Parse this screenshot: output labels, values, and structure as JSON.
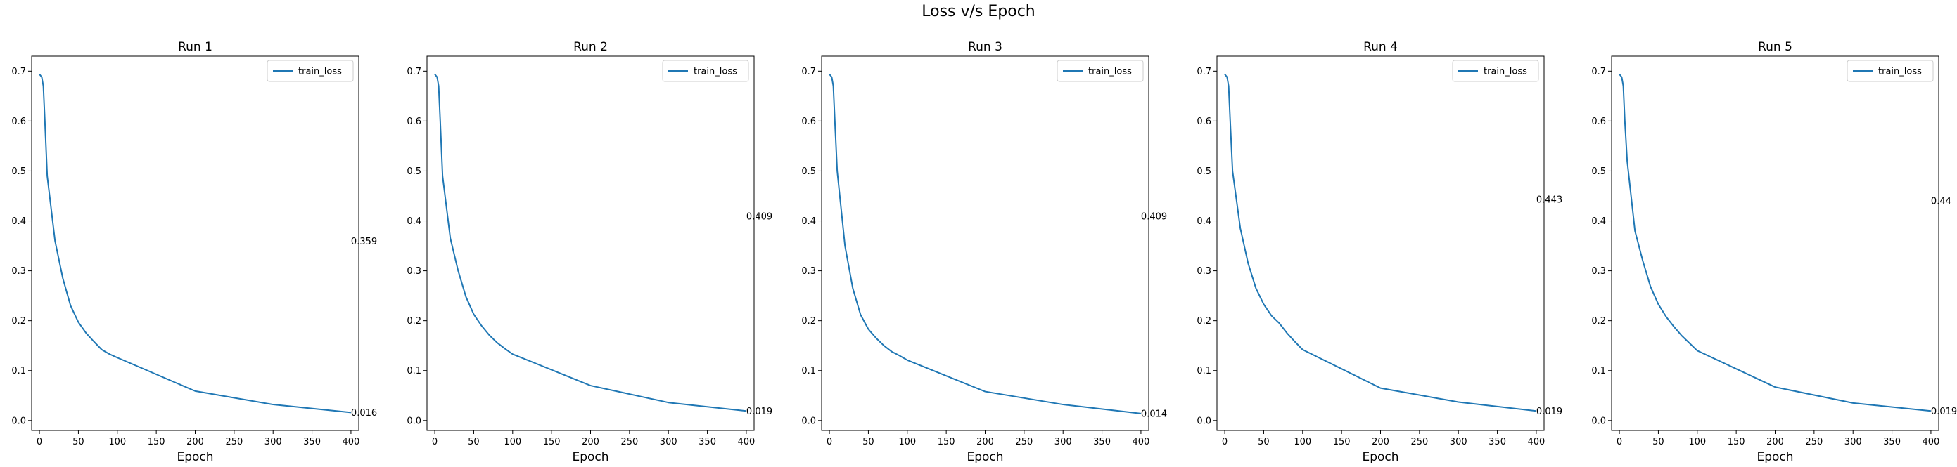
{
  "figure": {
    "suptitle": "Loss v/s Epoch"
  },
  "style": {
    "line_color": "#1f77b4"
  },
  "chart_data": [
    {
      "type": "line",
      "title": "Run 1",
      "xlabel": "Epoch",
      "ylabel": "",
      "legend": [
        "train_loss"
      ],
      "legend_loc": "upper right",
      "xlim": [
        -10,
        410
      ],
      "ylim": [
        -0.02,
        0.73
      ],
      "xticks": [
        0,
        50,
        100,
        150,
        200,
        250,
        300,
        350,
        400
      ],
      "yticks": [
        0.0,
        0.1,
        0.2,
        0.3,
        0.4,
        0.5,
        0.6,
        0.7
      ],
      "series": [
        {
          "name": "train_loss",
          "x": [
            0,
            3,
            5,
            7,
            10,
            20,
            30,
            40,
            50,
            60,
            70,
            80,
            90,
            100,
            200,
            300,
            400
          ],
          "y": [
            0.694,
            0.688,
            0.67,
            0.6,
            0.49,
            0.36,
            0.285,
            0.23,
            0.197,
            0.175,
            0.158,
            0.142,
            0.133,
            0.126,
            0.059,
            0.032,
            0.016
          ]
        }
      ],
      "annotations": [
        {
          "x": 400,
          "y": 0.359,
          "text": "0.359"
        },
        {
          "x": 400,
          "y": 0.016,
          "text": "0.016"
        }
      ]
    },
    {
      "type": "line",
      "title": "Run 2",
      "xlabel": "Epoch",
      "ylabel": "",
      "legend": [
        "train_loss"
      ],
      "legend_loc": "upper right",
      "xlim": [
        -10,
        410
      ],
      "ylim": [
        -0.02,
        0.73
      ],
      "xticks": [
        0,
        50,
        100,
        150,
        200,
        250,
        300,
        350,
        400
      ],
      "yticks": [
        0.0,
        0.1,
        0.2,
        0.3,
        0.4,
        0.5,
        0.6,
        0.7
      ],
      "series": [
        {
          "name": "train_loss",
          "x": [
            0,
            3,
            5,
            7,
            10,
            20,
            30,
            40,
            50,
            60,
            70,
            80,
            90,
            100,
            200,
            300,
            400
          ],
          "y": [
            0.694,
            0.688,
            0.67,
            0.6,
            0.49,
            0.365,
            0.3,
            0.248,
            0.213,
            0.19,
            0.171,
            0.156,
            0.144,
            0.133,
            0.07,
            0.036,
            0.019
          ]
        }
      ],
      "annotations": [
        {
          "x": 400,
          "y": 0.409,
          "text": "0.409"
        },
        {
          "x": 400,
          "y": 0.019,
          "text": "0.019"
        }
      ]
    },
    {
      "type": "line",
      "title": "Run 3",
      "xlabel": "Epoch",
      "ylabel": "",
      "legend": [
        "train_loss"
      ],
      "legend_loc": "upper right",
      "xlim": [
        -10,
        410
      ],
      "ylim": [
        -0.02,
        0.73
      ],
      "xticks": [
        0,
        50,
        100,
        150,
        200,
        250,
        300,
        350,
        400
      ],
      "yticks": [
        0.0,
        0.1,
        0.2,
        0.3,
        0.4,
        0.5,
        0.6,
        0.7
      ],
      "series": [
        {
          "name": "train_loss",
          "x": [
            0,
            3,
            5,
            7,
            10,
            20,
            30,
            40,
            50,
            60,
            70,
            80,
            90,
            100,
            200,
            300,
            400
          ],
          "y": [
            0.694,
            0.688,
            0.67,
            0.6,
            0.5,
            0.35,
            0.265,
            0.212,
            0.183,
            0.165,
            0.15,
            0.138,
            0.13,
            0.121,
            0.058,
            0.032,
            0.014
          ]
        }
      ],
      "annotations": [
        {
          "x": 400,
          "y": 0.409,
          "text": "0.409"
        },
        {
          "x": 400,
          "y": 0.014,
          "text": "0.014"
        }
      ]
    },
    {
      "type": "line",
      "title": "Run 4",
      "xlabel": "Epoch",
      "ylabel": "",
      "legend": [
        "train_loss"
      ],
      "legend_loc": "upper right",
      "xlim": [
        -10,
        410
      ],
      "ylim": [
        -0.02,
        0.73
      ],
      "xticks": [
        0,
        50,
        100,
        150,
        200,
        250,
        300,
        350,
        400
      ],
      "yticks": [
        0.0,
        0.1,
        0.2,
        0.3,
        0.4,
        0.5,
        0.6,
        0.7
      ],
      "series": [
        {
          "name": "train_loss",
          "x": [
            0,
            3,
            5,
            7,
            10,
            20,
            30,
            40,
            50,
            60,
            70,
            80,
            90,
            100,
            200,
            300,
            400
          ],
          "y": [
            0.694,
            0.688,
            0.67,
            0.6,
            0.5,
            0.385,
            0.315,
            0.265,
            0.233,
            0.21,
            0.195,
            0.175,
            0.158,
            0.142,
            0.065,
            0.037,
            0.019
          ]
        }
      ],
      "annotations": [
        {
          "x": 400,
          "y": 0.443,
          "text": "0.443"
        },
        {
          "x": 400,
          "y": 0.019,
          "text": "0.019"
        }
      ]
    },
    {
      "type": "line",
      "title": "Run 5",
      "xlabel": "Epoch",
      "ylabel": "",
      "legend": [
        "train_loss"
      ],
      "legend_loc": "upper right",
      "xlim": [
        -10,
        410
      ],
      "ylim": [
        -0.02,
        0.73
      ],
      "xticks": [
        0,
        50,
        100,
        150,
        200,
        250,
        300,
        350,
        400
      ],
      "yticks": [
        0.0,
        0.1,
        0.2,
        0.3,
        0.4,
        0.5,
        0.6,
        0.7
      ],
      "series": [
        {
          "name": "train_loss",
          "x": [
            0,
            3,
            5,
            7,
            10,
            20,
            30,
            40,
            50,
            60,
            70,
            80,
            90,
            100,
            200,
            300,
            400
          ],
          "y": [
            0.694,
            0.688,
            0.67,
            0.6,
            0.52,
            0.38,
            0.32,
            0.268,
            0.233,
            0.208,
            0.188,
            0.17,
            0.155,
            0.14,
            0.067,
            0.035,
            0.019
          ]
        }
      ],
      "annotations": [
        {
          "x": 400,
          "y": 0.44,
          "text": "0.44"
        },
        {
          "x": 400,
          "y": 0.019,
          "text": "0.019"
        }
      ]
    }
  ]
}
